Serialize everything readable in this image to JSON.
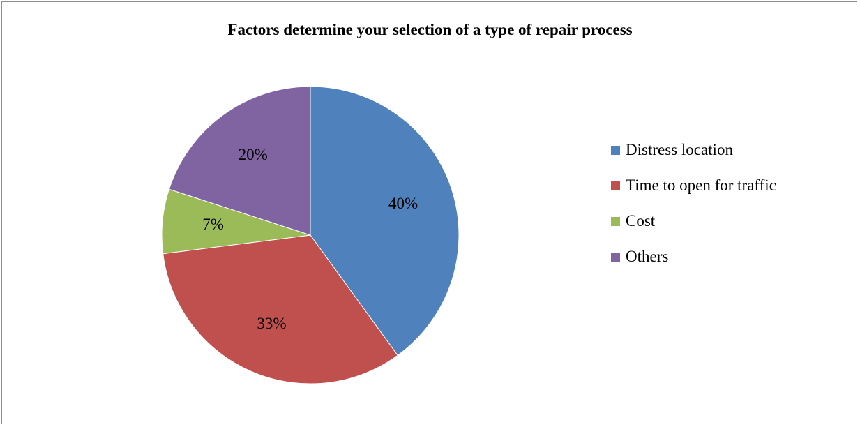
{
  "chart_data": {
    "type": "pie",
    "title": "Factors determine your selection of a type of repair process",
    "start_angle_deg": 0,
    "direction": "clockwise",
    "legend_position": "right",
    "slices": [
      {
        "label": "Distress location",
        "value": 40,
        "display": "40%",
        "color": "#4F81BD"
      },
      {
        "label": "Time to open for traffic",
        "value": 33,
        "display": "33%",
        "color": "#C0504D"
      },
      {
        "label": "Cost",
        "value": 7,
        "display": "7%",
        "color": "#9BBB59"
      },
      {
        "label": "Others",
        "value": 20,
        "display": "20%",
        "color": "#8064A2"
      }
    ]
  }
}
